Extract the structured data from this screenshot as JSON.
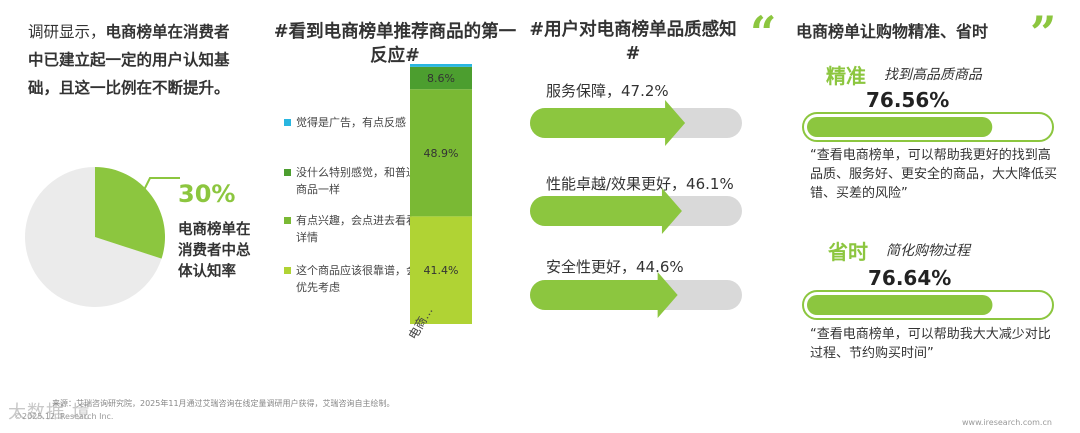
{
  "section1": {
    "text_plain": "调研显示，",
    "text_bold": "电商榜单在消费者中已建立起一定的用户认知基础，且这一比例在不断提升。",
    "pct": "30%",
    "label": "电商榜单在消费者中总体认知率",
    "value": 30
  },
  "section2": {
    "title": "#看到电商榜单推荐商品的第一反应#",
    "legend": [
      {
        "label": "觉得是广告，有点反感",
        "color": "#29b6e0"
      },
      {
        "label": "没什么特别感觉，和普通商品一样",
        "color": "#4c9e2f"
      },
      {
        "label": "有点兴趣，会点进去看看详情",
        "color": "#7ab934"
      },
      {
        "label": "这个商品应该很靠谱，会优先考虑",
        "color": "#b0d334"
      }
    ]
  },
  "section3": {
    "title": "#用户对电商榜单品质感知#",
    "bars": [
      {
        "label": "服务保障，47.2%"
      },
      {
        "label": "性能卓越/效果更好，46.1%"
      },
      {
        "label": "安全性更好，44.6%"
      }
    ]
  },
  "section4": {
    "quote_open": "“",
    "quote_close": "”",
    "title": "电商榜单让购物精准、省时",
    "items": [
      {
        "head": "精准",
        "sub": "找到高品质商品",
        "pct": "76.56%",
        "quote": "“查看电商榜单，可以帮助我更好的找到高品质、服务好、更安全的商品，大大降低买错、买差的风险”"
      },
      {
        "head": "省时",
        "sub": "简化购物过程",
        "pct": "76.64%",
        "quote": "“查看电商榜单，可以帮助我大大减少对比过程、节约购买时间”"
      }
    ]
  },
  "footer": {
    "source": "来源：艾瑞咨询研究院，2025年11月通过艾瑞咨询在线定量调研用户获得，艾瑞咨询自主绘制。",
    "copyright": "©2025.12 iResearch Inc.",
    "watermark": "大数据 境",
    "url": "www.iresearch.com.cn"
  },
  "colors": {
    "accent": "#8cc63f",
    "bar_bg": "#d9d9d9",
    "pie_rest": "#ebebeb"
  },
  "chart_data": [
    {
      "type": "pie",
      "labels": [
        "电商榜单在消费者中总体认知率",
        ""
      ],
      "values": [
        30,
        70
      ]
    },
    {
      "type": "bar",
      "stacked": true,
      "categories": [
        "电商..."
      ],
      "series": [
        {
          "name": "这个商品应该很靠谱，会优先考虑",
          "values": [
            41.4
          ]
        },
        {
          "name": "有点兴趣，会点进去看看详情",
          "values": [
            48.9
          ]
        },
        {
          "name": "没什么特别感觉，和普通商品一样",
          "values": [
            8.6
          ]
        },
        {
          "name": "觉得是广告，有点反感",
          "values": [
            1.1
          ]
        }
      ],
      "ylim": [
        0,
        100
      ]
    },
    {
      "type": "bar",
      "orientation": "horizontal",
      "categories": [
        "服务保障",
        "性能卓越/效果更好",
        "安全性更好"
      ],
      "values": [
        47.2,
        46.1,
        44.6
      ],
      "xlim": [
        0,
        100
      ]
    },
    {
      "type": "bar",
      "orientation": "horizontal",
      "categories": [
        "精准",
        "省时"
      ],
      "values": [
        76.56,
        76.64
      ],
      "xlim": [
        0,
        100
      ]
    }
  ]
}
